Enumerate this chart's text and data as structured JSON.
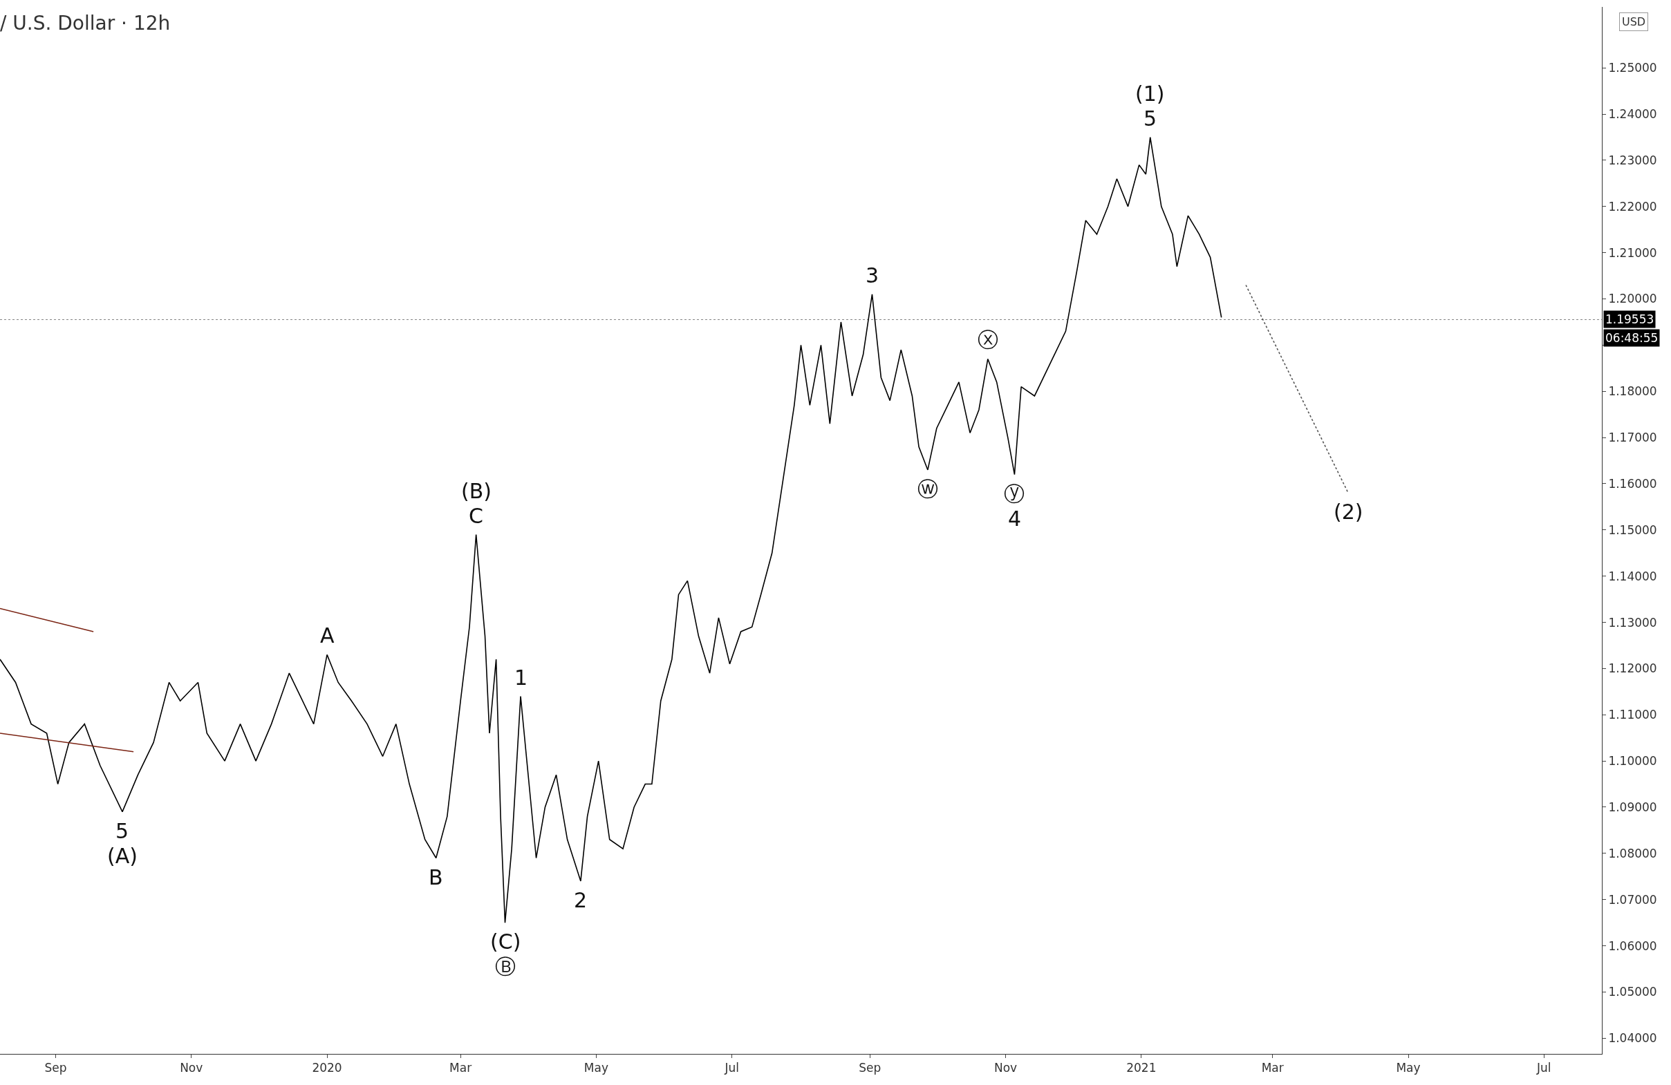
{
  "chart_data": {
    "type": "line",
    "title": "/ U.S. Dollar · 12h",
    "ylabel": "USD",
    "marker": "none",
    "series": [
      {
        "color": "#000000",
        "line_style": "solid",
        "x": [
          "2019-08-07",
          "2019-08-14",
          "2019-08-21",
          "2019-08-28",
          "2019-09-02",
          "2019-09-07",
          "2019-09-14",
          "2019-09-21",
          "2019-10-01",
          "2019-10-08",
          "2019-10-15",
          "2019-10-22",
          "2019-10-27",
          "2019-11-04",
          "2019-11-08",
          "2019-11-16",
          "2019-11-23",
          "2019-11-30",
          "2019-12-07",
          "2019-12-15",
          "2019-12-21",
          "2019-12-26",
          "2020-01-01",
          "2020-01-06",
          "2020-01-12",
          "2020-01-19",
          "2020-01-26",
          "2020-02-01",
          "2020-02-07",
          "2020-02-14",
          "2020-02-19",
          "2020-02-24",
          "2020-03-01",
          "2020-03-05",
          "2020-03-08",
          "2020-03-12",
          "2020-03-14",
          "2020-03-17",
          "2020-03-19",
          "2020-03-21",
          "2020-03-24",
          "2020-03-28",
          "2020-03-31",
          "2020-04-04",
          "2020-04-08",
          "2020-04-13",
          "2020-04-18",
          "2020-04-24",
          "2020-04-27",
          "2020-05-02",
          "2020-05-07",
          "2020-05-13",
          "2020-05-18",
          "2020-05-23",
          "2020-05-26",
          "2020-05-30",
          "2020-06-04",
          "2020-06-07",
          "2020-06-11",
          "2020-06-16",
          "2020-06-21",
          "2020-06-25",
          "2020-06-30",
          "2020-07-05",
          "2020-07-10",
          "2020-07-14",
          "2020-07-19",
          "2020-07-24",
          "2020-07-29",
          "2020-08-01",
          "2020-08-05",
          "2020-08-10",
          "2020-08-14",
          "2020-08-19",
          "2020-08-24",
          "2020-08-29",
          "2020-09-02",
          "2020-09-06",
          "2020-09-10",
          "2020-09-15",
          "2020-09-20",
          "2020-09-23",
          "2020-09-27",
          "2020-10-01",
          "2020-10-06",
          "2020-10-11",
          "2020-10-16",
          "2020-10-20",
          "2020-10-24",
          "2020-10-28",
          "2020-11-02",
          "2020-11-05",
          "2020-11-08",
          "2020-11-14",
          "2020-11-21",
          "2020-11-28",
          "2020-12-03",
          "2020-12-07",
          "2020-12-12",
          "2020-12-17",
          "2020-12-21",
          "2020-12-26",
          "2020-12-31",
          "2021-01-03",
          "2021-01-05",
          "2021-01-10",
          "2021-01-15",
          "2021-01-17",
          "2021-01-22",
          "2021-01-27",
          "2021-02-01",
          "2021-02-06"
        ],
        "values": [
          1.122,
          1.117,
          1.108,
          1.106,
          1.095,
          1.104,
          1.108,
          1.099,
          1.089,
          1.097,
          1.104,
          1.117,
          1.113,
          1.117,
          1.106,
          1.1,
          1.108,
          1.1,
          1.108,
          1.119,
          1.113,
          1.108,
          1.123,
          1.117,
          1.113,
          1.108,
          1.101,
          1.108,
          1.095,
          1.083,
          1.079,
          1.088,
          1.113,
          1.129,
          1.149,
          1.127,
          1.106,
          1.122,
          1.088,
          1.065,
          1.081,
          1.114,
          1.099,
          1.079,
          1.09,
          1.097,
          1.083,
          1.074,
          1.088,
          1.1,
          1.083,
          1.081,
          1.09,
          1.095,
          1.095,
          1.113,
          1.122,
          1.136,
          1.139,
          1.127,
          1.119,
          1.131,
          1.121,
          1.128,
          1.129,
          1.136,
          1.145,
          1.161,
          1.177,
          1.19,
          1.177,
          1.19,
          1.173,
          1.195,
          1.179,
          1.188,
          1.201,
          1.183,
          1.178,
          1.189,
          1.179,
          1.168,
          1.163,
          1.172,
          1.177,
          1.182,
          1.171,
          1.176,
          1.187,
          1.182,
          1.17,
          1.162,
          1.181,
          1.179,
          1.186,
          1.193,
          1.206,
          1.217,
          1.214,
          1.22,
          1.226,
          1.22,
          1.229,
          1.227,
          1.235,
          1.22,
          1.214,
          1.207,
          1.218,
          1.214,
          1.209,
          1.196
        ]
      },
      {
        "color": "#7b2414",
        "line_style": "solid",
        "x": [
          "2019-08-07",
          "2019-09-18"
        ],
        "values": [
          1.133,
          1.128
        ]
      },
      {
        "color": "#7b2414",
        "line_style": "solid",
        "x": [
          "2019-08-07",
          "2019-10-06"
        ],
        "values": [
          1.106,
          1.102
        ]
      },
      {
        "color": "#555555",
        "line_style": "dotted",
        "x": [
          "2021-02-17",
          "2021-04-04"
        ],
        "values": [
          1.203,
          1.158
        ]
      }
    ],
    "xlim": [
      "2019-08-07",
      "2021-07-27"
    ],
    "xticks": [
      {
        "value": "2019-09-01",
        "label": "Sep"
      },
      {
        "value": "2019-11-01",
        "label": "Nov"
      },
      {
        "value": "2020-01-01",
        "label": "2020"
      },
      {
        "value": "2020-03-01",
        "label": "Mar"
      },
      {
        "value": "2020-05-01",
        "label": "May"
      },
      {
        "value": "2020-07-01",
        "label": "Jul"
      },
      {
        "value": "2020-09-01",
        "label": "Sep"
      },
      {
        "value": "2020-11-01",
        "label": "Nov"
      },
      {
        "value": "2021-01-01",
        "label": "2021"
      },
      {
        "value": "2021-03-01",
        "label": "Mar"
      },
      {
        "value": "2021-05-01",
        "label": "May"
      },
      {
        "value": "2021-07-01",
        "label": "Jul"
      }
    ],
    "ylim": [
      1.0366,
      1.2632
    ],
    "yticks": [
      {
        "value": 1.04,
        "label": "1.04000"
      },
      {
        "value": 1.05,
        "label": "1.05000"
      },
      {
        "value": 1.06,
        "label": "1.06000"
      },
      {
        "value": 1.07,
        "label": "1.07000"
      },
      {
        "value": 1.08,
        "label": "1.08000"
      },
      {
        "value": 1.09,
        "label": "1.09000"
      },
      {
        "value": 1.1,
        "label": "1.10000"
      },
      {
        "value": 1.11,
        "label": "1.11000"
      },
      {
        "value": 1.12,
        "label": "1.12000"
      },
      {
        "value": 1.13,
        "label": "1.13000"
      },
      {
        "value": 1.14,
        "label": "1.14000"
      },
      {
        "value": 1.15,
        "label": "1.15000"
      },
      {
        "value": 1.16,
        "label": "1.16000"
      },
      {
        "value": 1.17,
        "label": "1.17000"
      },
      {
        "value": 1.18,
        "label": "1.18000"
      },
      {
        "value": 1.19,
        "label": null
      },
      {
        "value": 1.2,
        "label": "1.20000"
      },
      {
        "value": 1.21,
        "label": "1.21000"
      },
      {
        "value": 1.22,
        "label": "1.22000"
      },
      {
        "value": 1.23,
        "label": "1.23000"
      },
      {
        "value": 1.24,
        "label": "1.24000"
      },
      {
        "value": 1.25,
        "label": "1.25000"
      }
    ],
    "ref_lines": [
      {
        "axis": "y",
        "value": 1.19553,
        "label": "1.19553"
      }
    ],
    "annotations": [
      {
        "text": "5",
        "x": "2019-10-01",
        "y": 1.089
      },
      {
        "text": "(A)",
        "x": "2019-10-01",
        "y": 1.089
      },
      {
        "text": "A",
        "x": "2020-01-01",
        "y": 1.123
      },
      {
        "text": "B",
        "x": "2020-02-19",
        "y": 1.079
      },
      {
        "text": "(B)",
        "x": "2020-03-08",
        "y": 1.149
      },
      {
        "text": "C",
        "x": "2020-03-08",
        "y": 1.149
      },
      {
        "text": "(C)",
        "x": "2020-03-21",
        "y": 1.065
      },
      {
        "text": "Ⓑ",
        "x": "2020-03-21",
        "y": 1.065
      },
      {
        "text": "1",
        "x": "2020-03-28",
        "y": 1.114
      },
      {
        "text": "2",
        "x": "2020-04-24",
        "y": 1.074
      },
      {
        "text": "3",
        "x": "2020-09-02",
        "y": 1.201
      },
      {
        "text": "ⓦ",
        "x": "2020-09-27",
        "y": 1.163
      },
      {
        "text": "ⓧ",
        "x": "2020-10-24",
        "y": 1.187
      },
      {
        "text": "ⓨ",
        "x": "2020-11-05",
        "y": 1.162
      },
      {
        "text": "4",
        "x": "2020-11-05",
        "y": 1.162
      },
      {
        "text": "(1)",
        "x": "2021-01-05",
        "y": 1.235
      },
      {
        "text": "5",
        "x": "2021-01-05",
        "y": 1.235
      },
      {
        "text": "(2)",
        "x": "2021-04-04",
        "y": 1.158
      },
      "06:48:55"
    ]
  }
}
